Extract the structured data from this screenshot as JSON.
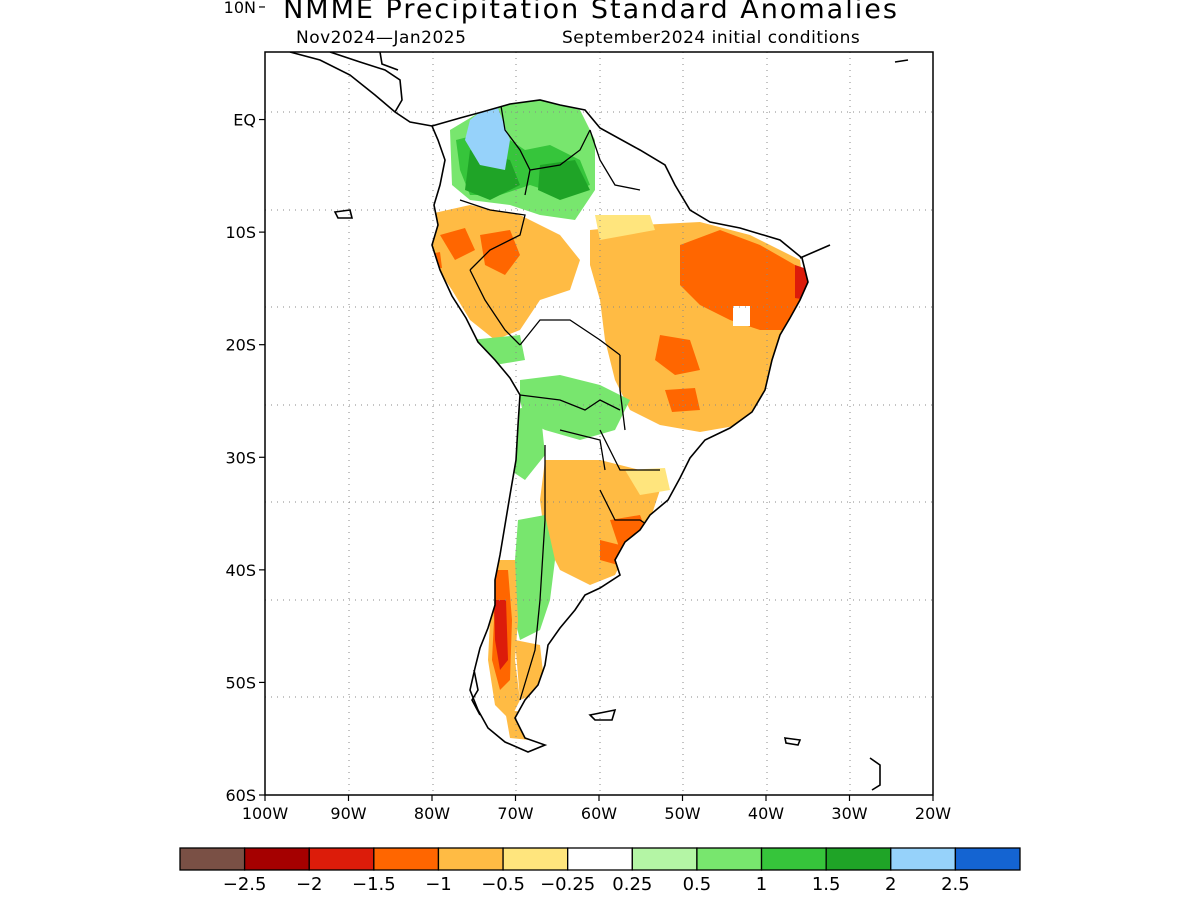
{
  "title": "NMME Precipitation Standard Anomalies",
  "subtitle_left": "Nov2024—Jan2025",
  "subtitle_right": "September2024 initial conditions",
  "map": {
    "lon_range": [
      -100,
      -20
    ],
    "lat_range": [
      -60,
      6
    ],
    "lon_ticks": [
      {
        "value": -100,
        "label": "100W"
      },
      {
        "value": -90,
        "label": "90W"
      },
      {
        "value": -80,
        "label": "80W"
      },
      {
        "value": -70,
        "label": "70W"
      },
      {
        "value": -60,
        "label": "60W"
      },
      {
        "value": -50,
        "label": "50W"
      },
      {
        "value": -40,
        "label": "40W"
      },
      {
        "value": -30,
        "label": "30W"
      },
      {
        "value": -20,
        "label": "20W"
      }
    ],
    "lat_ticks": [
      {
        "value": 10,
        "label": "10N"
      },
      {
        "value": 0,
        "label": "EQ"
      },
      {
        "value": -10,
        "label": "10S"
      },
      {
        "value": -20,
        "label": "20S"
      },
      {
        "value": -30,
        "label": "30S"
      },
      {
        "value": -40,
        "label": "40S"
      },
      {
        "value": -50,
        "label": "50S"
      },
      {
        "value": -60,
        "label": "60S"
      }
    ],
    "gridlines": "dotted"
  },
  "legend": {
    "colors": [
      "#7a5045",
      "#a50000",
      "#dc1c0a",
      "#ff6600",
      "#ffbb44",
      "#ffe57d",
      "#ffffff",
      "#b4f5a5",
      "#78e66e",
      "#36c53b",
      "#1fa427",
      "#96d2fa",
      "#1464d2"
    ],
    "labels": [
      "−2.5",
      "−2",
      "−1.5",
      "−1",
      "−0.5",
      "−0.25",
      "0.25",
      "0.5",
      "1",
      "1.5",
      "2",
      "2.5"
    ]
  }
}
